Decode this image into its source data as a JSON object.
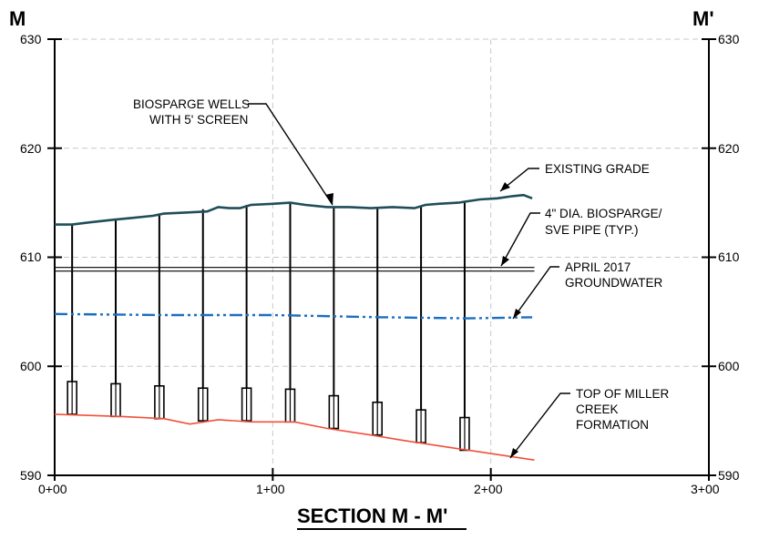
{
  "section": {
    "left_label": "M",
    "right_label": "M'",
    "title": "SECTION M - M'"
  },
  "axis": {
    "y_ticks": [
      "630",
      "620",
      "610",
      "600",
      "590"
    ],
    "x_ticks": [
      "0+00",
      "1+00",
      "2+00",
      "3+00"
    ]
  },
  "annotations": {
    "biosparge_wells": [
      "BIOSPARGE WELLS",
      "WITH 5' SCREEN"
    ],
    "existing_grade": [
      "EXISTING GRADE"
    ],
    "pipe": [
      "4\" DIA. BIOSPARGE/",
      "SVE PIPE (TYP.)"
    ],
    "groundwater": [
      "APRIL 2017",
      "GROUNDWATER"
    ],
    "miller_creek": [
      "TOP OF MILLER",
      "CREEK",
      "FORMATION"
    ]
  },
  "colors": {
    "grade": "#1f4e5a",
    "groundwater": "#1a6fc4",
    "formation": "#f0503c",
    "grid": "#c8c8c8",
    "ink": "#000000"
  },
  "chart_data": {
    "type": "line",
    "xlabel": "",
    "ylabel": "",
    "xlim": [
      0,
      300
    ],
    "ylim": [
      590,
      630
    ],
    "x_tick_values": [
      0,
      100,
      200,
      300
    ],
    "y_tick_values": [
      590,
      600,
      610,
      620,
      630
    ],
    "series": [
      {
        "key": "grade",
        "points": [
          [
            0,
            613.0
          ],
          [
            8,
            613.0
          ],
          [
            16,
            613.2
          ],
          [
            25,
            613.4
          ],
          [
            35,
            613.6
          ],
          [
            45,
            613.8
          ],
          [
            50,
            614.0
          ],
          [
            60,
            614.1
          ],
          [
            70,
            614.2
          ],
          [
            75,
            614.6
          ],
          [
            80,
            614.5
          ],
          [
            85,
            614.5
          ],
          [
            90,
            614.8
          ],
          [
            100,
            614.9
          ],
          [
            108,
            615.0
          ],
          [
            115,
            614.8
          ],
          [
            125,
            614.6
          ],
          [
            135,
            614.6
          ],
          [
            145,
            614.5
          ],
          [
            155,
            614.6
          ],
          [
            165,
            614.5
          ],
          [
            170,
            614.8
          ],
          [
            176,
            614.9
          ],
          [
            185,
            615.0
          ],
          [
            195,
            615.3
          ],
          [
            203,
            615.4
          ],
          [
            210,
            615.6
          ],
          [
            215,
            615.7
          ],
          [
            219,
            615.4
          ]
        ]
      },
      {
        "key": "pipe",
        "points": [
          [
            0,
            608.9
          ],
          [
            220,
            608.9
          ]
        ]
      },
      {
        "key": "groundwater",
        "points": [
          [
            0,
            604.8
          ],
          [
            50,
            604.7
          ],
          [
            100,
            604.7
          ],
          [
            150,
            604.5
          ],
          [
            190,
            604.4
          ],
          [
            219,
            604.5
          ]
        ]
      },
      {
        "key": "formation",
        "points": [
          [
            0,
            595.6
          ],
          [
            30,
            595.4
          ],
          [
            50,
            595.2
          ],
          [
            62,
            594.7
          ],
          [
            75,
            595.1
          ],
          [
            90,
            594.9
          ],
          [
            110,
            594.9
          ],
          [
            125,
            594.3
          ],
          [
            145,
            593.7
          ],
          [
            160,
            593.2
          ],
          [
            180,
            592.6
          ],
          [
            200,
            592.0
          ],
          [
            220,
            591.4
          ]
        ]
      }
    ],
    "wells": [
      {
        "x": 8,
        "top": 613.0,
        "screen_top": 598.6,
        "screen_bottom": 595.6
      },
      {
        "x": 28,
        "top": 613.4,
        "screen_top": 598.4,
        "screen_bottom": 595.4
      },
      {
        "x": 48,
        "top": 614.0,
        "screen_top": 598.2,
        "screen_bottom": 595.2
      },
      {
        "x": 68,
        "top": 614.4,
        "screen_top": 598.0,
        "screen_bottom": 595.0
      },
      {
        "x": 88,
        "top": 614.8,
        "screen_top": 598.0,
        "screen_bottom": 595.0
      },
      {
        "x": 108,
        "top": 615.0,
        "screen_top": 597.9,
        "screen_bottom": 594.9
      },
      {
        "x": 128,
        "top": 614.6,
        "screen_top": 597.3,
        "screen_bottom": 594.3
      },
      {
        "x": 148,
        "top": 614.5,
        "screen_top": 596.7,
        "screen_bottom": 593.7
      },
      {
        "x": 168,
        "top": 614.6,
        "screen_top": 596.0,
        "screen_bottom": 593.0
      },
      {
        "x": 188,
        "top": 615.1,
        "screen_top": 595.3,
        "screen_bottom": 592.3
      }
    ]
  }
}
